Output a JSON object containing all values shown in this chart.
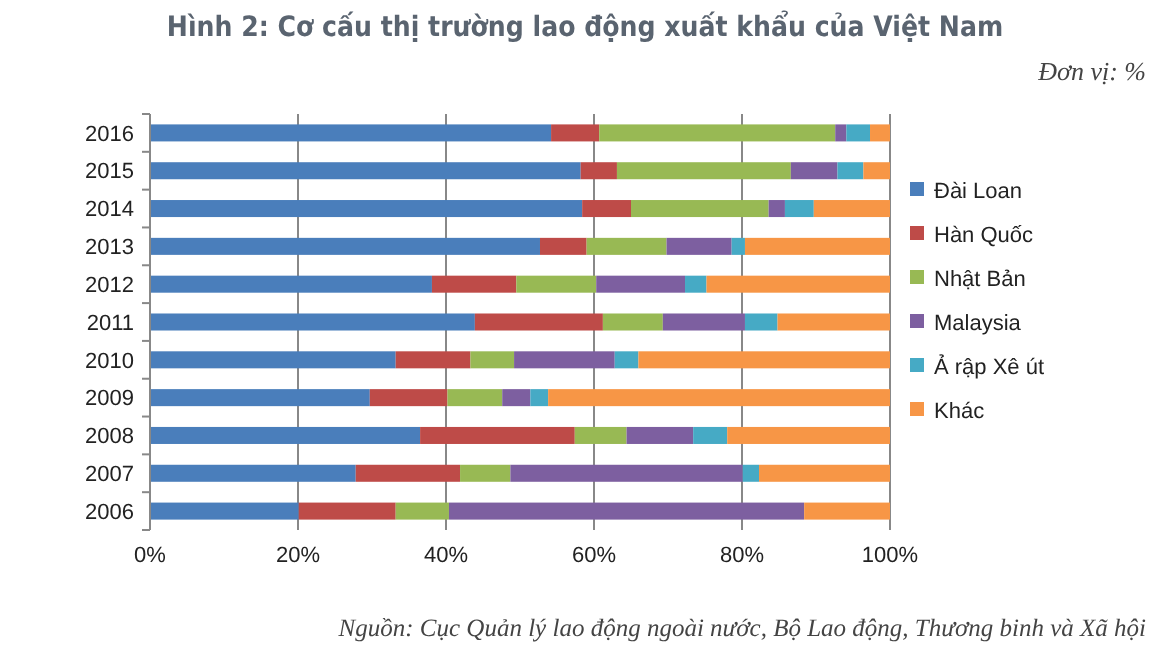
{
  "chart_data": {
    "type": "bar",
    "orientation": "horizontal",
    "stacked": true,
    "title": "Hình 2: Cơ cấu thị trường lao động xuất khẩu của Việt Nam",
    "annotations": [
      "Đơn vị: %",
      "Nguồn: Cục Quản lý lao động ngoài nước, Bộ Lao động, Thương binh và Xã hội"
    ],
    "categories": [
      "2016",
      "2015",
      "2014",
      "2013",
      "2012",
      "2011",
      "2010",
      "2009",
      "2008",
      "2007",
      "2006"
    ],
    "series": [
      {
        "name": "Đài Loan",
        "color": "#4a7ebb",
        "values": [
          54.2,
          58.2,
          58.4,
          52.7,
          38.1,
          43.9,
          33.2,
          29.7,
          36.5,
          27.8,
          20.1
        ]
      },
      {
        "name": "Hàn Quốc",
        "color": "#be4b48",
        "values": [
          6.5,
          4.9,
          6.6,
          6.3,
          11.4,
          17.3,
          10.1,
          10.5,
          20.9,
          14.1,
          13.1
        ]
      },
      {
        "name": "Nhật Bản",
        "color": "#98b954",
        "values": [
          31.9,
          23.5,
          18.6,
          10.8,
          10.8,
          8.1,
          5.9,
          7.4,
          7.0,
          6.8,
          7.2
        ]
      },
      {
        "name": "Malaysia",
        "color": "#7d5fa0",
        "values": [
          1.5,
          6.3,
          2.2,
          8.8,
          12.0,
          11.1,
          13.6,
          3.8,
          9.0,
          31.4,
          48.0
        ]
      },
      {
        "name": "Ả rập Xê út",
        "color": "#46aac5",
        "values": [
          3.2,
          3.5,
          3.9,
          1.8,
          2.9,
          4.4,
          3.2,
          2.4,
          4.6,
          2.2,
          0
        ]
      },
      {
        "name": "Khác",
        "color": "#f79646",
        "values": [
          2.7,
          3.6,
          10.3,
          19.6,
          24.8,
          15.2,
          34.0,
          46.2,
          22.0,
          17.7,
          11.6
        ]
      }
    ],
    "xlim": [
      0,
      100
    ],
    "xticks": [
      {
        "value": 0,
        "label": "0%"
      },
      {
        "value": 20,
        "label": "20%"
      },
      {
        "value": 40,
        "label": "40%"
      },
      {
        "value": 60,
        "label": "60%"
      },
      {
        "value": 80,
        "label": "80%"
      },
      {
        "value": 100,
        "label": "100%"
      }
    ],
    "grid": "x",
    "legend": "right"
  }
}
